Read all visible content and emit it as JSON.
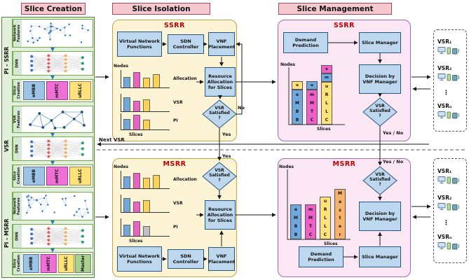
{
  "headers": {
    "slice_creation": "Slice Creation",
    "slice_isolation": "Slice Isolation",
    "slice_management": "Slice Management"
  },
  "left_panel": {
    "sections": [
      {
        "side_label": "PI – SSRR",
        "features_label": "Network Features",
        "dnn_label": "DNN",
        "creation_label": "Slice Creation",
        "slices": [
          {
            "name": "eMBB",
            "color": "#9dc3e6"
          },
          {
            "name": "mMTC",
            "color": "#f06fd6"
          },
          {
            "name": "uRLLC",
            "color": "#ffe27a"
          }
        ]
      },
      {
        "side_label": "VSR",
        "features_label": "VSR Features",
        "dnn_label": "DNN",
        "creation_label": "Slice Creation",
        "slices": [
          {
            "name": "eMBB",
            "color": "#9dc3e6"
          },
          {
            "name": "mMTC",
            "color": "#f06fd6"
          },
          {
            "name": "uRLLC",
            "color": "#ffe27a"
          }
        ]
      },
      {
        "side_label": "PI – MSRR",
        "features_label": "Network Features",
        "dnn_label": "DNN",
        "creation_label": "Slice Creation",
        "slices": [
          {
            "name": "eMBB",
            "color": "#9dc3e6"
          },
          {
            "name": "mMTC",
            "color": "#f06fd6"
          },
          {
            "name": "uRLLC",
            "color": "#ffe27a"
          },
          {
            "name": "Master",
            "color": "#a9d18e"
          }
        ]
      }
    ]
  },
  "isolation": {
    "ssrr": {
      "title": "SSRR",
      "vnf_box": "Virtual Network Functions",
      "sdn_box": "SDN Controller",
      "placement_box": "VNF Placement",
      "resource_box": "Resource Allocation for Slices",
      "diamond": "VSR Satisfied ?",
      "nodes_label": "Nodes",
      "slices_label": "Slices",
      "charts": [
        {
          "label": "Allocation",
          "bars": [
            {
              "c": "#6fa8dc",
              "h": 0.6
            },
            {
              "c": "#ee5fc8",
              "h": 0.95
            },
            {
              "c": "#ffd24d",
              "h": 0.55
            },
            {
              "c": "#ffd24d",
              "h": 0.8
            }
          ]
        },
        {
          "label": "VSR",
          "bars": [
            {
              "c": "#6fa8dc",
              "h": 0.85
            },
            {
              "c": "#ee5fc8",
              "h": 0.6
            },
            {
              "c": "#ffd24d",
              "h": 0.7
            }
          ]
        },
        {
          "label": "PI",
          "bars": [
            {
              "c": "#6fa8dc",
              "h": 0.6
            },
            {
              "c": "#ee5fc8",
              "h": 0.9
            },
            {
              "c": "#ffd24d",
              "h": 0.55
            }
          ]
        }
      ]
    },
    "msrr": {
      "title": "MSRR",
      "vnf_box": "Virtual Network Functions",
      "sdn_box": "SDN Controller",
      "placement_box": "VNF Placement",
      "resource_box": "Resource Allocation for Slices",
      "diamond": "VSR Satisfied ?",
      "nodes_label": "Nodes",
      "slices_label": "Slices",
      "charts": [
        {
          "label": "Allocation",
          "bars": [
            {
              "c": "#6fa8dc",
              "h": 0.7
            },
            {
              "c": "#ee5fc8",
              "h": 0.95
            },
            {
              "c": "#ffd24d",
              "h": 0.6
            },
            {
              "c": "#ffd24d",
              "h": 0.8
            }
          ]
        },
        {
          "label": "VSR",
          "bars": [
            {
              "c": "#6fa8dc",
              "h": 0.85
            },
            {
              "c": "#ee5fc8",
              "h": 0.6
            },
            {
              "c": "#ffd24d",
              "h": 0.7
            }
          ]
        },
        {
          "label": "PI",
          "bars": [
            {
              "c": "#6fa8dc",
              "h": 0.65
            },
            {
              "c": "#ee5fc8",
              "h": 0.9
            },
            {
              "c": "#bfbfbf",
              "h": 0.5
            }
          ]
        }
      ]
    }
  },
  "management": {
    "ssrr": {
      "title": "SSRR",
      "demand_box": "Demand Prediction",
      "manager_box": "Slice Manager",
      "decision_box": "Decision by VNF Manager",
      "diamond": "VSR Satisfied ?",
      "nodes_label": "Nodes",
      "slices_label": "Slices",
      "columns": [
        {
          "letters": "eMBB",
          "color": "#6fa8dc",
          "extras": [
            {
              "letter": "u",
              "color": "#ffe27a"
            }
          ]
        },
        {
          "letters": "mMTC",
          "color": "#ee5fc8",
          "extras": [
            {
              "letter": "u",
              "color": "#6fa8dc"
            }
          ]
        },
        {
          "letters": "uRLLC",
          "color": "#ffe27a",
          "extras": [
            {
              "letter": "e",
              "color": "#ee5fc8"
            },
            {
              "letter": "m",
              "color": "#6fa8dc"
            }
          ]
        }
      ]
    },
    "msrr": {
      "title": "MSRR",
      "demand_box": "Demand Prediction",
      "manager_box": "Slice Manager",
      "decision_box": "Decision by VNF Manager",
      "diamond": "VSR Satisfied ?",
      "nodes_label": "Nodes",
      "slices_label": "Slices",
      "columns": [
        {
          "letters": "eMBB",
          "color": "#6fa8dc",
          "extras": []
        },
        {
          "letters": "mMTC",
          "color": "#ee5fc8",
          "extras": []
        },
        {
          "letters": "uRLLC",
          "color": "#ffe27a",
          "extras": []
        },
        {
          "letters": "Master",
          "color": "#f6b26b",
          "extras": []
        }
      ]
    }
  },
  "flow_labels": {
    "next_vsr": "Next VSR",
    "no": "No",
    "yes_upper": "Yes",
    "yes_lower": "Yes",
    "yes_no_upper": "Yes / No",
    "yes_no_lower": "Yes / No"
  },
  "vsr_groups": {
    "top": [
      "VSR₁",
      "VSR₂",
      "⋮",
      "VSRₙ"
    ],
    "bottom": [
      "VSR₁",
      "VSR₂",
      "⋮",
      "VSRₙ"
    ]
  }
}
